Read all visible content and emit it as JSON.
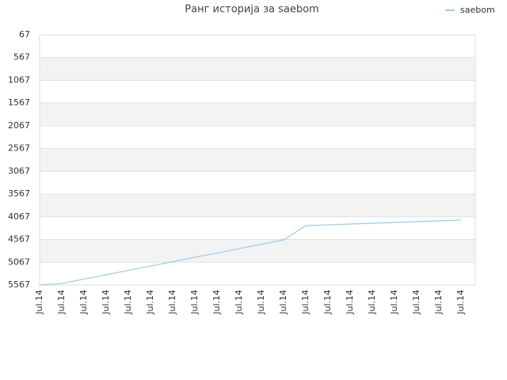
{
  "chart_data": {
    "type": "line",
    "title": "Ранг историја за saebom",
    "categories": [
      "Jul.14",
      "Jul.14",
      "Jul.14",
      "Jul.14",
      "Jul.14",
      "Jul.14",
      "Jul.14",
      "Jul.14",
      "Jul.14",
      "Jul.14",
      "Jul.14",
      "Jul.14",
      "Jul.14",
      "Jul.14",
      "Jul.14",
      "Jul.14",
      "Jul.14",
      "Jul.14",
      "Jul.14",
      "Jul.14"
    ],
    "series": [
      {
        "name": "saebom",
        "color": "#9ecae9",
        "values": [
          5567,
          5533,
          5437,
          5341,
          5246,
          5150,
          5054,
          4958,
          4863,
          4767,
          4671,
          4575,
          4262,
          4245,
          4227,
          4210,
          4192,
          4175,
          4157,
          4140
        ]
      }
    ],
    "ylim": [
      5567,
      67
    ],
    "yticks": [
      67,
      567,
      1067,
      1567,
      2067,
      2567,
      3067,
      3567,
      4067,
      4567,
      5067,
      5567
    ],
    "grid": true,
    "legend": "top-right"
  }
}
